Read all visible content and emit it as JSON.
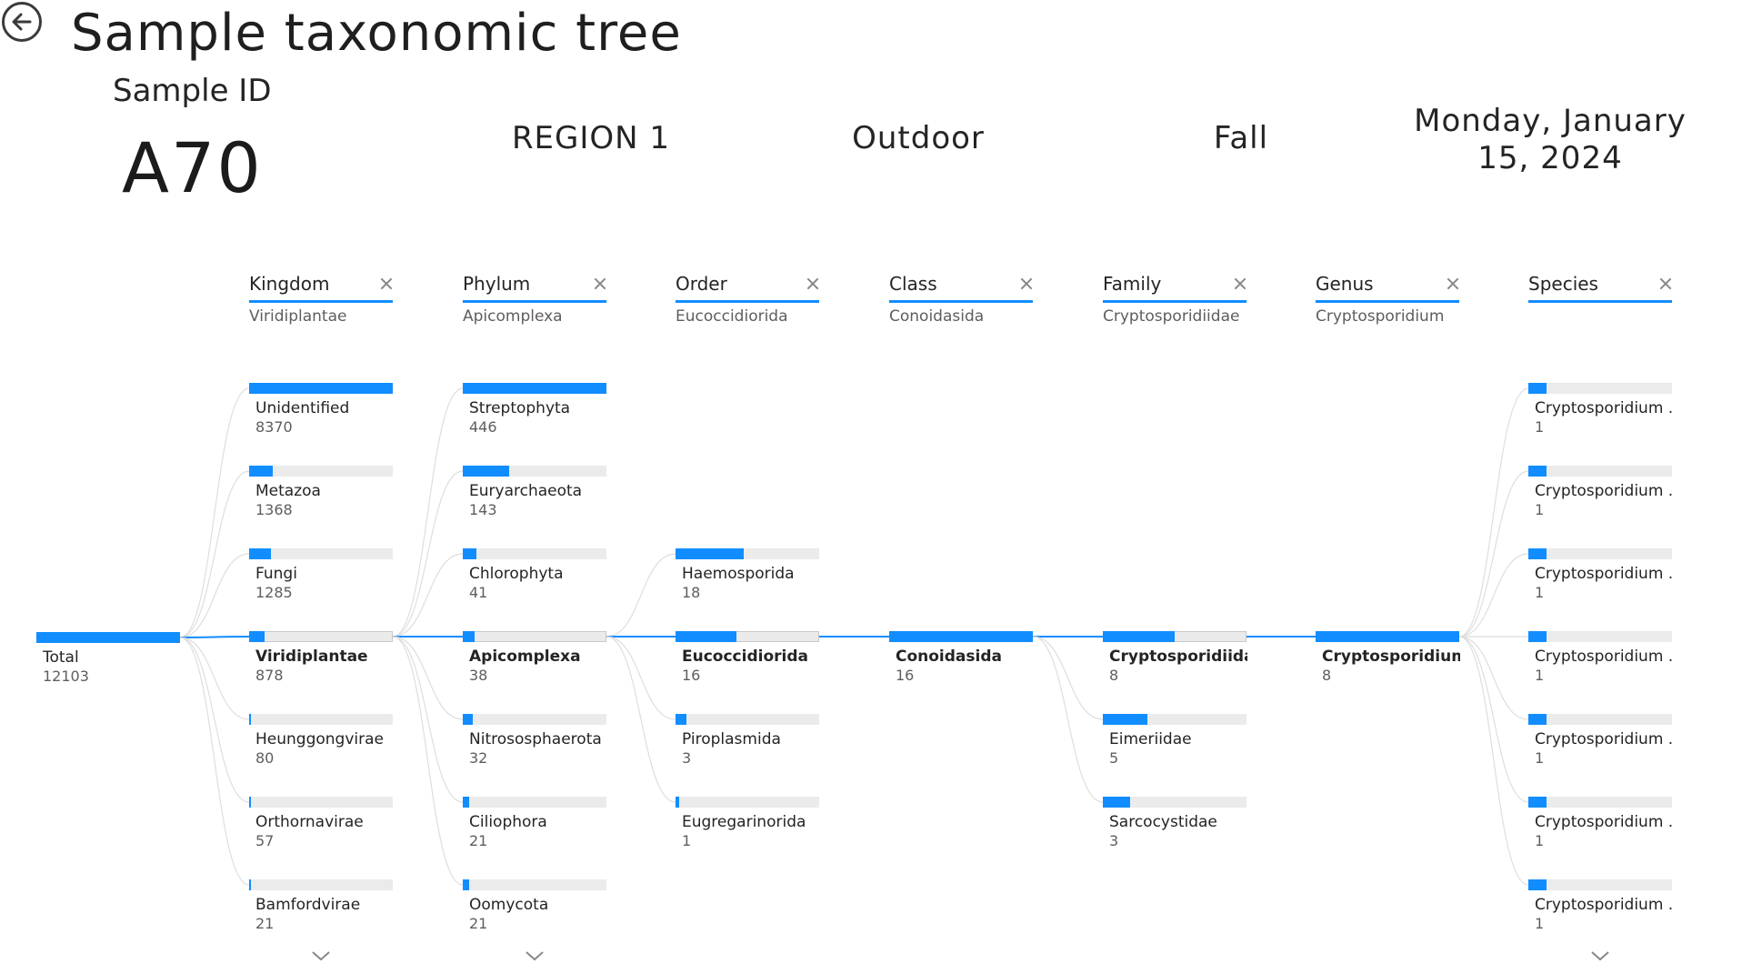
{
  "header": {
    "title": "Sample taxonomic tree",
    "sample_id_label": "Sample ID",
    "sample_id_value": "A70",
    "region": "REGION 1",
    "environment": "Outdoor",
    "season": "Fall",
    "date_line1": "Monday, January",
    "date_line2": "15, 2024"
  },
  "colors": {
    "accent": "#118dff",
    "track": "#ebebeb",
    "link_selected": "#118dff",
    "link_other": "#dedede"
  },
  "icons": {
    "back": "back-arrow-circle-icon",
    "close": "close-icon",
    "expand": "chevron-down-icon"
  },
  "tree": {
    "root": {
      "label": "Total",
      "value": "12103"
    },
    "levels": [
      {
        "name": "Kingdom",
        "selected": "Viridiplantae",
        "max": 8370,
        "nodes": [
          {
            "label": "Unidentified",
            "value": 8370
          },
          {
            "label": "Metazoa",
            "value": 1368
          },
          {
            "label": "Fungi",
            "value": 1285
          },
          {
            "label": "Viridiplantae",
            "value": 878,
            "selected": true
          },
          {
            "label": "Heunggongvirae",
            "value": 80
          },
          {
            "label": "Orthornavirae",
            "value": 57
          },
          {
            "label": "Bamfordvirae",
            "value": 21
          }
        ],
        "has_more": true
      },
      {
        "name": "Phylum",
        "selected": "Apicomplexa",
        "max": 446,
        "nodes": [
          {
            "label": "Streptophyta",
            "value": 446
          },
          {
            "label": "Euryarchaeota",
            "value": 143
          },
          {
            "label": "Chlorophyta",
            "value": 41
          },
          {
            "label": "Apicomplexa",
            "value": 38,
            "selected": true
          },
          {
            "label": "Nitrososphaerota",
            "value": 32
          },
          {
            "label": "Ciliophora",
            "value": 21
          },
          {
            "label": "Oomycota",
            "value": 21
          }
        ],
        "has_more": true
      },
      {
        "name": "Order",
        "selected": "Eucoccidiorida",
        "max": 38,
        "nodes": [
          {
            "label": "Haemosporida",
            "value": 18
          },
          {
            "label": "Eucoccidiorida",
            "value": 16,
            "selected": true
          },
          {
            "label": "Piroplasmida",
            "value": 3
          },
          {
            "label": "Eugregarinorida",
            "value": 1
          }
        ],
        "has_more": false
      },
      {
        "name": "Class",
        "selected": "Conoidasida",
        "max": 16,
        "nodes": [
          {
            "label": "Conoidasida",
            "value": 16,
            "selected": true
          }
        ],
        "has_more": false
      },
      {
        "name": "Family",
        "selected": "Cryptosporidiidae",
        "max": 16,
        "nodes": [
          {
            "label": "Cryptosporidiidae",
            "value": 8,
            "selected": true
          },
          {
            "label": "Eimeriidae",
            "value": 5
          },
          {
            "label": "Sarcocystidae",
            "value": 3
          }
        ],
        "has_more": false
      },
      {
        "name": "Genus",
        "selected": "Cryptosporidium",
        "max": 8,
        "nodes": [
          {
            "label": "Cryptosporidium",
            "value": 8,
            "selected": true
          }
        ],
        "has_more": false
      },
      {
        "name": "Species",
        "selected": "",
        "max": 8,
        "nodes": [
          {
            "label": "Cryptosporidium ...",
            "value": 1
          },
          {
            "label": "Cryptosporidium ...",
            "value": 1
          },
          {
            "label": "Cryptosporidium ...",
            "value": 1
          },
          {
            "label": "Cryptosporidium ...",
            "value": 1
          },
          {
            "label": "Cryptosporidium ...",
            "value": 1
          },
          {
            "label": "Cryptosporidium ...",
            "value": 1
          },
          {
            "label": "Cryptosporidium ...",
            "value": 1
          }
        ],
        "has_more": true
      }
    ]
  }
}
